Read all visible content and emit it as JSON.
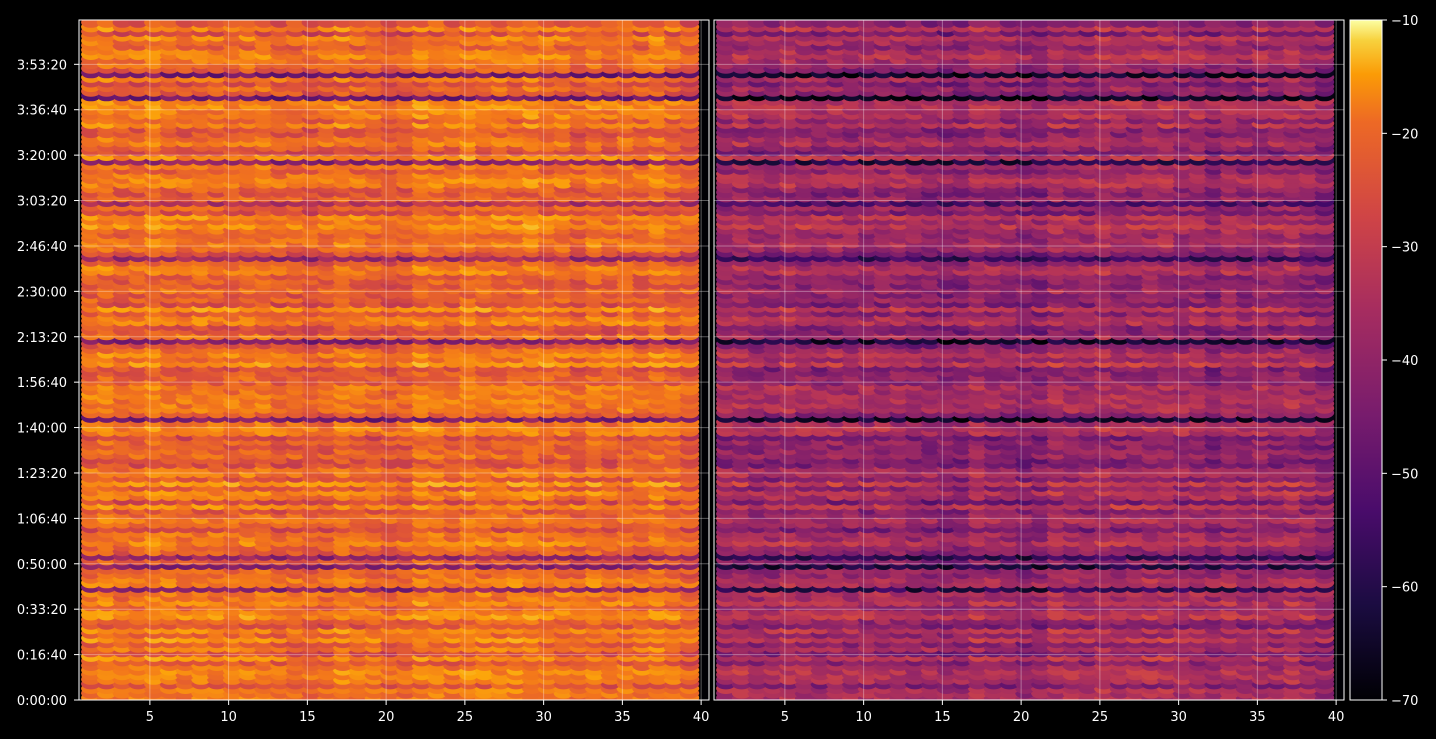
{
  "chart_data": {
    "type": "heatmap",
    "title": "",
    "xlabel": "",
    "ylabel": "",
    "grid": true,
    "panels": [
      {
        "name": "",
        "xlim": [
          1,
          40
        ],
        "xticks": [
          "5",
          "10",
          "15",
          "20",
          "25",
          "30",
          "35",
          "40"
        ],
        "level_mean": -30
      },
      {
        "name": "",
        "xlim": [
          1,
          40
        ],
        "xticks": [
          "5",
          "10",
          "15",
          "20",
          "25",
          "30",
          "35",
          "40"
        ],
        "level_mean": -45
      }
    ],
    "y_axis": {
      "unit": "time (h:mm:ss)",
      "range_seconds": [
        0,
        14976
      ],
      "ticks": [
        "0:00:00",
        "0:16:40",
        "0:33:20",
        "0:50:00",
        "1:06:40",
        "1:23:20",
        "1:40:00",
        "1:56:40",
        "2:13:20",
        "2:30:00",
        "2:46:40",
        "3:03:20",
        "3:20:00",
        "3:36:40",
        "3:53:20"
      ]
    },
    "colorbar": {
      "colormap": "inferno",
      "range": [
        -70,
        -10
      ],
      "ticks": [
        "−10",
        "−20",
        "−30",
        "−40",
        "−50",
        "−60",
        "−70"
      ]
    },
    "colors": {
      "background": "#000000",
      "axes": "#ffffff",
      "grid": "#ffffff"
    }
  }
}
